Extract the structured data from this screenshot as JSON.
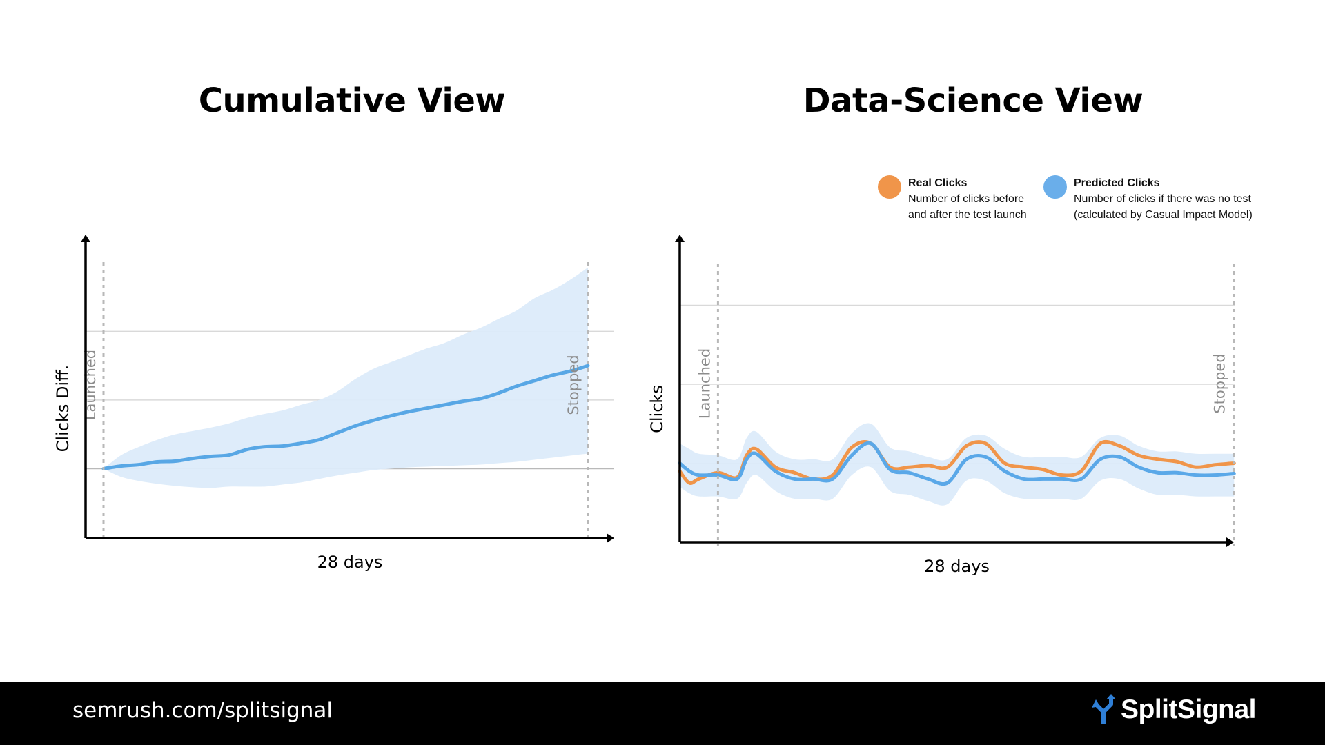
{
  "chart_data": [
    {
      "type": "area",
      "title": "Cumulative View",
      "xlabel": "28 days",
      "ylabel": "Clicks  Diff.",
      "xlim": [
        -1,
        28
      ],
      "ylim": [
        -1,
        3.4
      ],
      "grid_lines_y": [
        0,
        1,
        2
      ],
      "markers": [
        {
          "x": 0,
          "label": "Launched"
        },
        {
          "x": 27,
          "label": "Stopped"
        }
      ],
      "series": [
        {
          "name": "Cumulative clicks difference",
          "color": "#58a7e5",
          "x": [
            0,
            1,
            2,
            3,
            4,
            5,
            6,
            7,
            8,
            9,
            10,
            11,
            12,
            13,
            14,
            15,
            16,
            17,
            18,
            19,
            20,
            21,
            22,
            23,
            24,
            25,
            26,
            27
          ],
          "values": [
            0,
            0.04,
            0.06,
            0.1,
            0.11,
            0.15,
            0.18,
            0.2,
            0.28,
            0.32,
            0.33,
            0.37,
            0.42,
            0.52,
            0.62,
            0.7,
            0.77,
            0.83,
            0.88,
            0.93,
            0.98,
            1.02,
            1.1,
            1.2,
            1.28,
            1.36,
            1.42,
            1.5
          ],
          "lower": [
            0,
            -0.12,
            -0.18,
            -0.22,
            -0.25,
            -0.27,
            -0.28,
            -0.26,
            -0.26,
            -0.26,
            -0.23,
            -0.2,
            -0.15,
            -0.1,
            -0.06,
            -0.02,
            0.0,
            0.02,
            0.03,
            0.04,
            0.05,
            0.06,
            0.08,
            0.1,
            0.13,
            0.16,
            0.19,
            0.22
          ],
          "upper": [
            0,
            0.2,
            0.32,
            0.42,
            0.5,
            0.55,
            0.6,
            0.66,
            0.74,
            0.8,
            0.85,
            0.93,
            1.0,
            1.12,
            1.3,
            1.45,
            1.55,
            1.65,
            1.75,
            1.83,
            1.95,
            2.05,
            2.18,
            2.3,
            2.48,
            2.6,
            2.75,
            2.93
          ]
        }
      ]
    },
    {
      "type": "line",
      "title": "Data-Science View",
      "xlabel": "28 days",
      "ylabel": "Clicks",
      "xlim": [
        -2,
        28
      ],
      "ylim": [
        -1,
        3
      ],
      "grid_lines_y": [
        0,
        1,
        2
      ],
      "markers": [
        {
          "x": 0,
          "label": "Launched"
        },
        {
          "x": 27,
          "label": "Stopped"
        }
      ],
      "series": [
        {
          "name": "Real Clicks",
          "description": "Number of clicks before and after the test launch",
          "color": "#f0954a",
          "x": [
            -2,
            -1.5,
            -1,
            0,
            1,
            1.5,
            2,
            3,
            4,
            5,
            6,
            7,
            8,
            9,
            10,
            11,
            12,
            13,
            14,
            15,
            16,
            17,
            18,
            19,
            20,
            21,
            22,
            23,
            24,
            25,
            26,
            27
          ],
          "values": [
            -0.1,
            -0.25,
            -0.2,
            -0.12,
            -0.18,
            0.1,
            0.18,
            -0.05,
            -0.12,
            -0.2,
            -0.15,
            0.2,
            0.25,
            -0.05,
            -0.05,
            -0.03,
            -0.05,
            0.22,
            0.25,
            0.0,
            -0.05,
            -0.08,
            -0.15,
            -0.1,
            0.25,
            0.22,
            0.1,
            0.05,
            0.02,
            -0.05,
            -0.02,
            0.0
          ]
        },
        {
          "name": "Predicted Clicks",
          "description": "Number of clicks if there was no test (calculated by Casual Impact Model)",
          "color": "#5aa8e8",
          "x": [
            -2,
            -1.5,
            -1,
            0,
            1,
            1.5,
            2,
            3,
            4,
            5,
            6,
            7,
            8,
            9,
            10,
            11,
            12,
            13,
            14,
            15,
            16,
            17,
            18,
            19,
            20,
            21,
            22,
            23,
            24,
            25,
            26,
            27
          ],
          "values": [
            0.0,
            -0.1,
            -0.15,
            -0.15,
            -0.2,
            0.05,
            0.12,
            -0.1,
            -0.2,
            -0.2,
            -0.2,
            0.1,
            0.25,
            -0.08,
            -0.12,
            -0.2,
            -0.25,
            0.05,
            0.08,
            -0.1,
            -0.2,
            -0.2,
            -0.2,
            -0.2,
            0.05,
            0.08,
            -0.05,
            -0.12,
            -0.12,
            -0.15,
            -0.15,
            -0.13
          ],
          "lower": [
            -0.3,
            -0.38,
            -0.42,
            -0.42,
            -0.45,
            -0.25,
            -0.15,
            -0.35,
            -0.45,
            -0.45,
            -0.45,
            -0.15,
            -0.05,
            -0.35,
            -0.4,
            -0.48,
            -0.52,
            -0.22,
            -0.22,
            -0.38,
            -0.45,
            -0.45,
            -0.45,
            -0.45,
            -0.22,
            -0.2,
            -0.32,
            -0.4,
            -0.4,
            -0.42,
            -0.42,
            -0.42
          ],
          "upper": [
            0.25,
            0.18,
            0.12,
            0.1,
            0.05,
            0.32,
            0.4,
            0.15,
            0.05,
            0.05,
            0.05,
            0.38,
            0.5,
            0.2,
            0.15,
            0.08,
            0.05,
            0.32,
            0.35,
            0.18,
            0.08,
            0.08,
            0.08,
            0.08,
            0.32,
            0.35,
            0.22,
            0.15,
            0.15,
            0.12,
            0.12,
            0.12
          ]
        }
      ]
    }
  ],
  "legend": {
    "real": {
      "name": "Real Clicks",
      "line1": "Number of clicks before",
      "line2": "and after the test launch",
      "color": "#f0954a"
    },
    "predicted": {
      "name": "Predicted Clicks",
      "line1": "Number of clicks if there was no test",
      "line2": "(calculated by Casual Impact Model)",
      "color": "#5aa8e8"
    }
  },
  "footer": {
    "url": "semrush.com/splitsignal",
    "brand": "SplitSignal",
    "logo_icon": "split-arrow-icon"
  }
}
